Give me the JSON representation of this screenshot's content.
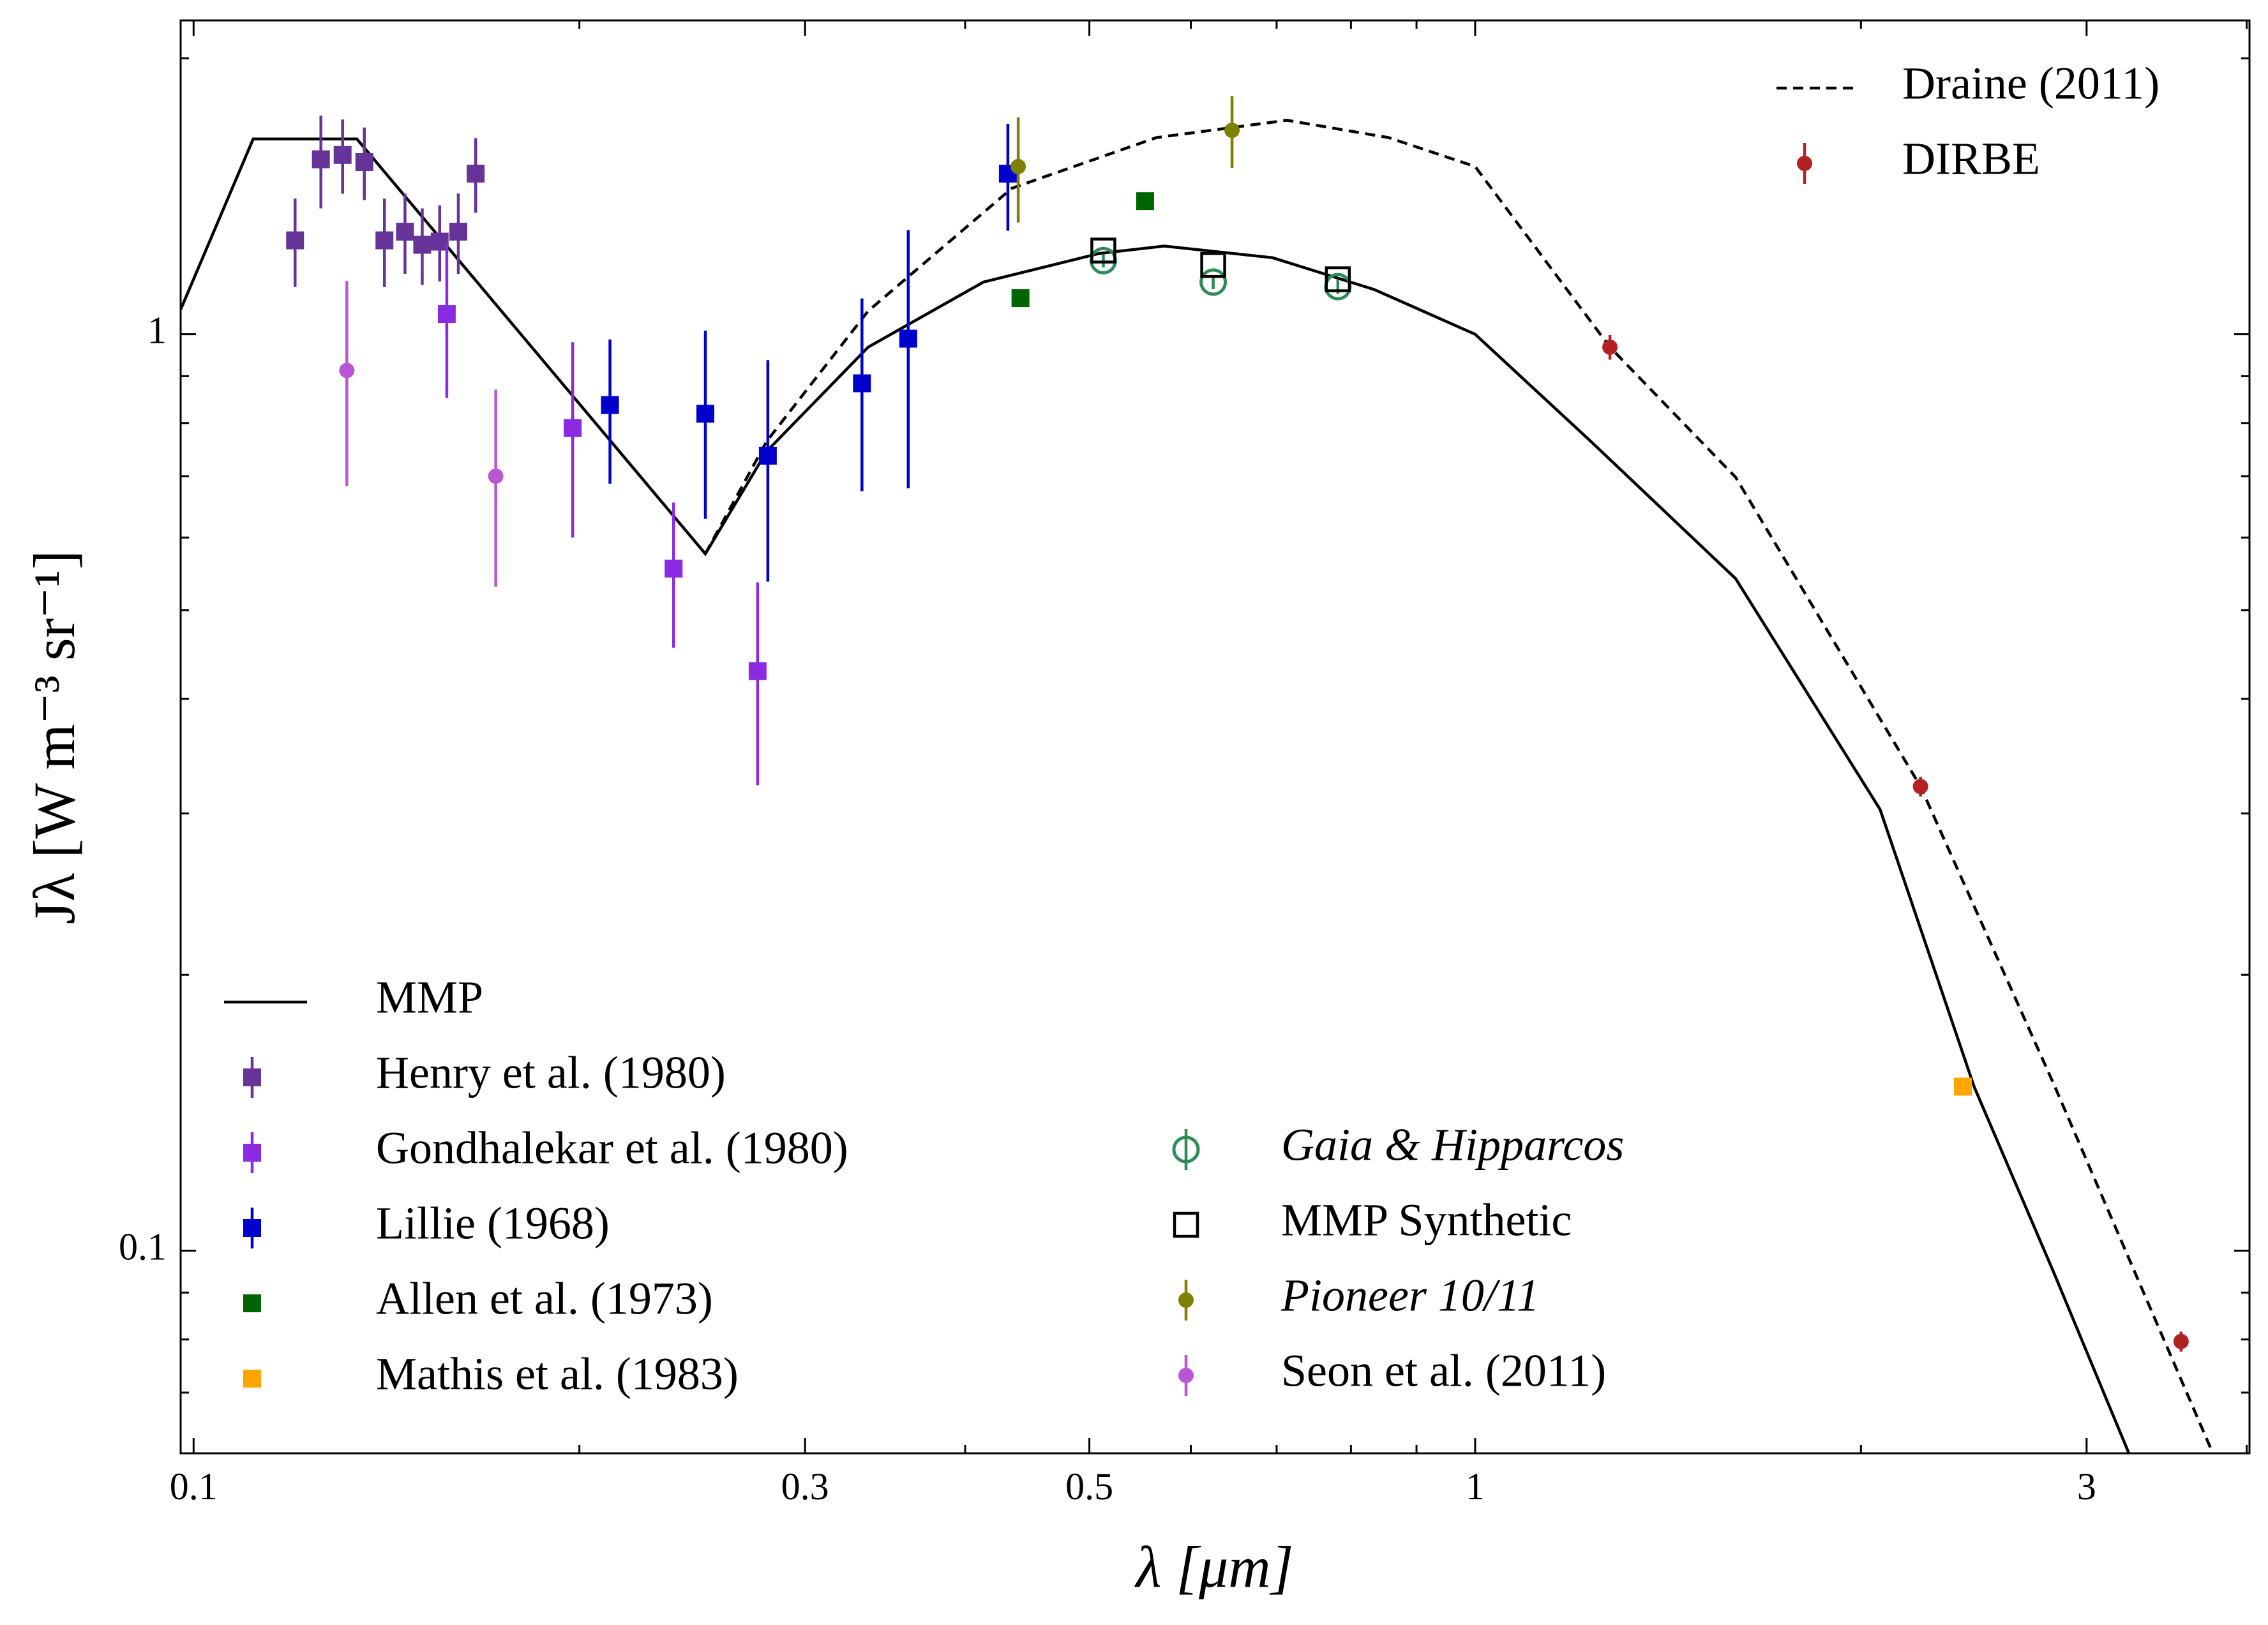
{
  "chart_data": {
    "type": "scatter",
    "xlabel": "λ [μm]",
    "ylabel": "Jλ [W m⁻³ sr⁻¹]",
    "xscale": "log",
    "yscale": "log",
    "xlim": [
      0.0977,
      4.02
    ],
    "ylim": [
      0.0601,
      2.2
    ],
    "xticks": [
      0.1,
      0.3,
      0.5,
      1,
      3
    ],
    "xminor": [
      0.2,
      0.4,
      0.6,
      0.7,
      0.8,
      0.9,
      2,
      4
    ],
    "yticks": [
      0.1,
      1
    ],
    "yminor": [
      0.07,
      0.08,
      0.09,
      0.2,
      0.3,
      0.4,
      0.5,
      0.6,
      0.7,
      0.8,
      0.9,
      2
    ],
    "series": [
      {
        "name": "MMP",
        "kind": "line",
        "color": "#000000",
        "legend": "lower left",
        "x": [
          0.0977,
          0.1113,
          0.1341,
          0.2508,
          0.28,
          0.336,
          0.4133,
          0.509,
          0.572,
          0.695,
          0.834,
          1,
          1.231,
          1.597,
          2.07,
          2.452,
          2.828,
          3.237
        ],
        "values": [
          1.064,
          1.633,
          1.633,
          0.576,
          0.745,
          0.968,
          1.14,
          1.225,
          1.248,
          1.212,
          1.119,
          1,
          0.764,
          0.541,
          0.303,
          0.1508,
          0.0947,
          0.0601
        ]
      },
      {
        "name": "Draine (2011)",
        "kind": "line",
        "dash": true,
        "color": "#000000",
        "legend": "upper right",
        "x": [
          0.2508,
          0.28,
          0.336,
          0.435,
          0.564,
          0.713,
          0.856,
          1,
          1.274,
          1.597,
          2.226,
          2.828,
          3.764
        ],
        "values": [
          0.576,
          0.764,
          1.06,
          1.443,
          1.639,
          1.712,
          1.639,
          1.524,
          0.968,
          0.698,
          0.321,
          0.152,
          0.0601
        ]
      },
      {
        "name": "Henry et al. (1980)",
        "marker": "square",
        "color": "#663399",
        "legend": "lower left",
        "x": [
          0.12,
          0.1257,
          0.1307,
          0.1359,
          0.1409,
          0.1462,
          0.1508,
          0.1556,
          0.1609,
          0.166
        ],
        "values": [
          1.266,
          1.552,
          1.569,
          1.541,
          1.266,
          1.294,
          1.252,
          1.262,
          1.294,
          1.497
        ],
        "errors": [
          0.14,
          0.18,
          0.146,
          0.14,
          0.14,
          0.13,
          0.12,
          0.12,
          0.13,
          0.14
        ]
      },
      {
        "name": "Gondhalekar et al. (1980)",
        "marker": "square",
        "color": "#8a2be2",
        "legend": "lower left",
        "x": [
          0.1576,
          0.1976,
          0.2369,
          0.2755
        ],
        "values": [
          1.052,
          0.79,
          0.555,
          0.429
        ],
        "errors": [
          0.2,
          0.19,
          0.1,
          0.107
        ]
      },
      {
        "name": "Lillie (1968)",
        "marker": "square",
        "color": "#0000cd",
        "legend": "lower left",
        "x": [
          0.2113,
          0.2508,
          0.2806,
          0.3323,
          0.3611,
          0.4319
        ],
        "values": [
          0.837,
          0.819,
          0.737,
          0.884,
          0.989,
          1.497
        ],
        "errors": [
          0.15,
          0.19,
          0.2,
          0.21,
          0.31,
          0.2
        ]
      },
      {
        "name": "Allen et al. (1973)",
        "marker": "square",
        "color": "#006400",
        "legend": "lower left",
        "x": [
          0.4418,
          0.5527
        ],
        "values": [
          1.095,
          1.397
        ]
      },
      {
        "name": "Mathis et al. (1983)",
        "marker": "square",
        "color": "#ffa500",
        "legend": "lower left",
        "x": [
          2.402
        ],
        "values": [
          0.151
        ]
      },
      {
        "name": "Gaia & Hipparcos",
        "marker": "open-circle",
        "italic": true,
        "color": "#2e8b57",
        "legend": "lower center",
        "x": [
          0.5127,
          0.6246,
          0.7814
        ],
        "values": [
          1.203,
          1.14,
          1.127
        ],
        "errors": [
          0.02,
          0.02,
          0.02
        ]
      },
      {
        "name": "MMP Synthetic",
        "marker": "open-square",
        "color": "#000000",
        "legend": "lower center",
        "x": [
          0.5127,
          0.6246,
          0.7814
        ],
        "values": [
          1.234,
          1.19,
          1.148
        ]
      },
      {
        "name": "Pioneer 10/11",
        "marker": "circle",
        "italic": true,
        "color": "#808000",
        "legend": "lower center",
        "x": [
          0.44,
          0.6461
        ],
        "values": [
          1.524,
          1.669
        ],
        "errors": [
          0.2,
          0.15
        ]
      },
      {
        "name": "Seon et al. (2011)",
        "marker": "circle",
        "color": "#ba55d3",
        "legend": "lower center",
        "x": [
          0.1317,
          0.1721
        ],
        "values": [
          0.913,
          0.7
        ],
        "errors": [
          0.23,
          0.17
        ]
      },
      {
        "name": "DIRBE",
        "marker": "circle",
        "color": "#b22222",
        "legend": "upper right",
        "x": [
          1.274,
          2.226,
          3.555
        ],
        "values": [
          0.968,
          0.321,
          0.0796
        ],
        "errors": [
          0.03,
          0.008,
          0.002
        ]
      }
    ]
  }
}
